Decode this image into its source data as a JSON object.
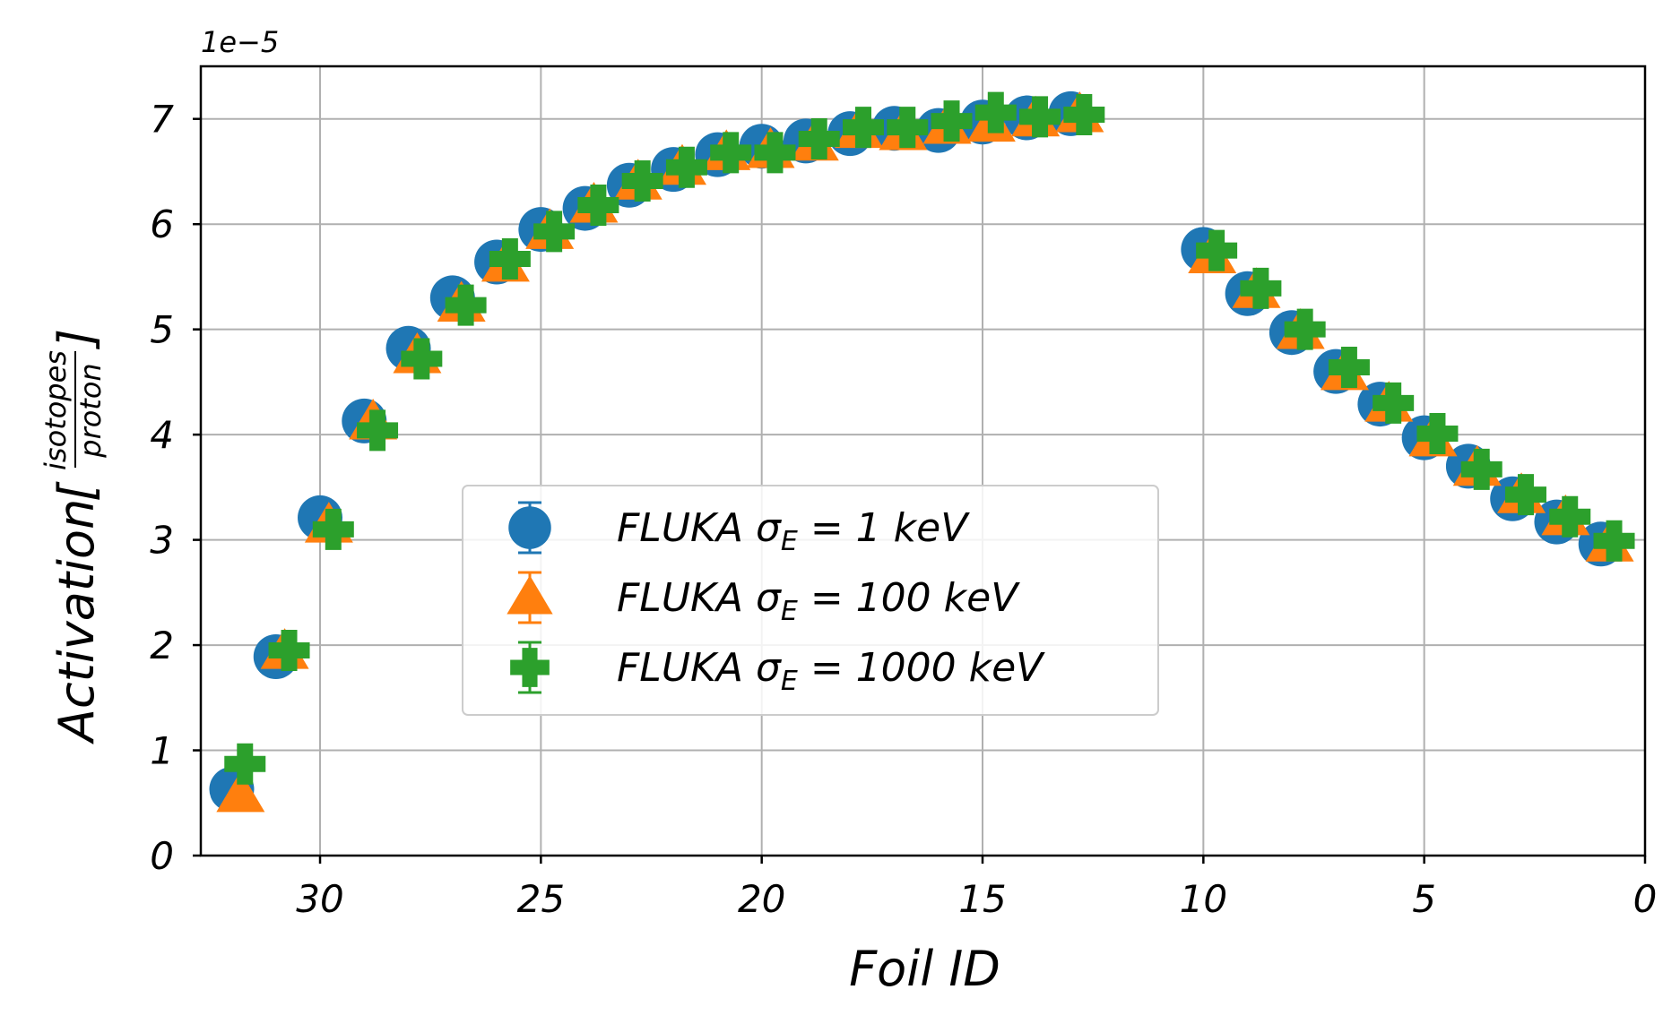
{
  "chart_data": {
    "type": "scatter",
    "xlabel": "Foil ID",
    "ylabel_main": "Activation",
    "ylabel_unit_numerator": "isotopes",
    "ylabel_unit_denominator": "proton",
    "y_offset_label": "1e−5",
    "xlim": [
      32.7,
      0
    ],
    "ylim": [
      0,
      7.5
    ],
    "x_ticks": [
      30,
      25,
      20,
      15,
      10,
      5,
      0
    ],
    "y_ticks": [
      0,
      1,
      2,
      3,
      4,
      5,
      6,
      7
    ],
    "x_tick_labels": [
      "30",
      "25",
      "20",
      "15",
      "10",
      "5",
      "0"
    ],
    "y_tick_labels": [
      "0",
      "1",
      "2",
      "3",
      "4",
      "5",
      "6",
      "7"
    ],
    "grid": true,
    "legend_position": "center",
    "legend_prefix": "FLUKA ",
    "legend_sigma": "σ",
    "legend_sub": "E",
    "series": [
      {
        "name": "FLUKA σE = 1 keV",
        "legend_value": " = 1 keV",
        "marker": "circle",
        "color": "#1f77b4",
        "x": [
          32.0,
          31.0,
          30.0,
          29.0,
          28.0,
          27.0,
          26.0,
          25.0,
          24.0,
          23.0,
          22.0,
          21.0,
          20.0,
          19.0,
          18.0,
          17.0,
          16.0,
          15.0,
          14.0,
          13.0,
          10.0,
          9.0,
          8.0,
          7.0,
          6.0,
          5.0,
          4.0,
          3.0,
          2.0,
          1.0
        ],
        "y": [
          0.63,
          1.89,
          3.21,
          4.13,
          4.82,
          5.3,
          5.64,
          5.95,
          6.15,
          6.37,
          6.52,
          6.66,
          6.74,
          6.79,
          6.86,
          6.91,
          6.89,
          6.97,
          7.01,
          7.05,
          5.76,
          5.34,
          4.97,
          4.6,
          4.29,
          3.97,
          3.7,
          3.39,
          3.17,
          2.96
        ]
      },
      {
        "name": "FLUKA σE = 100 keV",
        "legend_value": " = 100 keV",
        "marker": "triangle",
        "color": "#ff7f0e",
        "x": [
          31.8,
          30.8,
          29.8,
          28.8,
          27.8,
          26.8,
          25.8,
          24.8,
          23.8,
          22.8,
          21.8,
          20.8,
          19.8,
          18.8,
          17.8,
          16.8,
          15.8,
          14.8,
          13.8,
          12.8,
          9.8,
          8.8,
          7.8,
          6.8,
          5.8,
          4.8,
          3.8,
          2.8,
          1.8,
          0.8
        ],
        "y": [
          0.58,
          1.94,
          3.14,
          4.12,
          4.75,
          5.24,
          5.62,
          5.93,
          6.18,
          6.4,
          6.54,
          6.68,
          6.7,
          6.77,
          6.89,
          6.87,
          6.93,
          6.95,
          7.0,
          7.04,
          5.7,
          5.37,
          4.98,
          4.59,
          4.29,
          3.96,
          3.68,
          3.42,
          3.21,
          2.96
        ]
      },
      {
        "name": "FLUKA σE = 1000 keV",
        "legend_value": " = 1000 keV",
        "marker": "plus",
        "color": "#2ca02c",
        "x": [
          31.7,
          30.7,
          29.7,
          28.7,
          27.7,
          26.7,
          25.7,
          24.7,
          23.7,
          22.7,
          21.7,
          20.7,
          19.7,
          18.7,
          17.7,
          16.7,
          15.7,
          14.7,
          13.7,
          12.7,
          9.7,
          8.7,
          7.7,
          6.7,
          5.7,
          4.7,
          3.7,
          2.7,
          1.7,
          0.7
        ],
        "y": [
          0.87,
          1.95,
          3.1,
          4.04,
          4.72,
          5.23,
          5.67,
          5.93,
          6.18,
          6.41,
          6.54,
          6.68,
          6.68,
          6.81,
          6.92,
          6.92,
          6.98,
          7.06,
          7.02,
          7.04,
          5.75,
          5.39,
          5.0,
          4.64,
          4.3,
          4.01,
          3.67,
          3.43,
          3.22,
          2.99
        ]
      }
    ]
  }
}
